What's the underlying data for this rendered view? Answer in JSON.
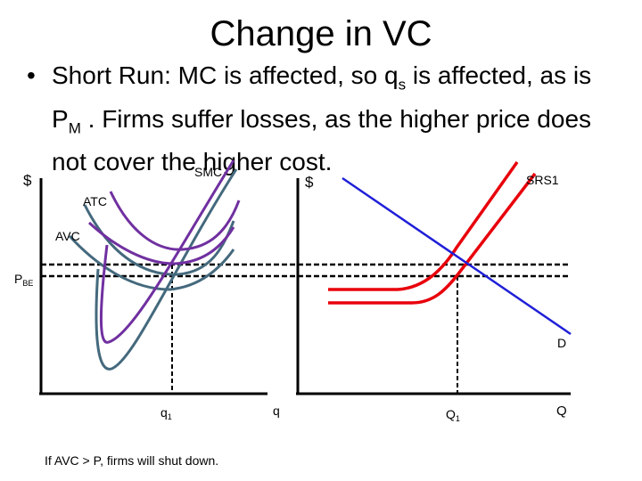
{
  "slide": {
    "title": "Change in VC",
    "bullet": {
      "marker": "•",
      "part1": "Short Run: MC is affected, so q",
      "sub1": "s",
      "part2": " is affected, as is P",
      "sub2": "M",
      "part3": " . Firms suffer losses, as the higher price does not cover the higher cost."
    },
    "footnote": "If AVC > P, firms will shut down."
  },
  "firm_graph": {
    "y_axis_label": "$",
    "x_axis_label": "q",
    "curve_labels": {
      "smc": "SMC",
      "atc": "ATC",
      "avc": "AVC"
    },
    "price_label": "P",
    "price_label_sub": "BE",
    "quantity_label": "q",
    "quantity_label_sub": "1"
  },
  "market_graph": {
    "y_axis_label": "$",
    "x_axis_label": "Q",
    "supply_label": "SRS1",
    "demand_label": "D",
    "quantity_label": "Q",
    "quantity_label_sub": "1"
  },
  "colors": {
    "axes": "#000000",
    "original_curves": "#44697d",
    "new_curves": "#7030a0",
    "supply": "#e8000b",
    "demand": "#1f1fd8",
    "guides": "#000000"
  }
}
